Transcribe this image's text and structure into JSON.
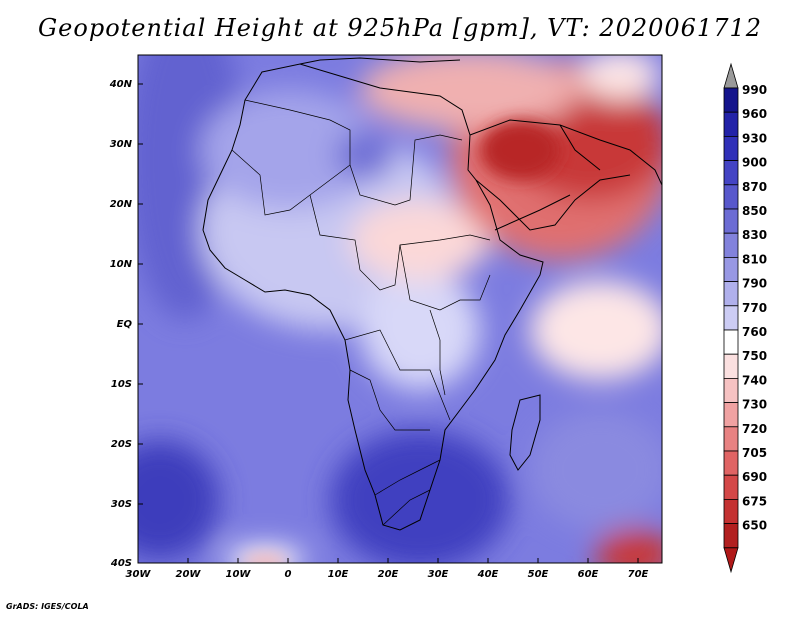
{
  "title": "Geopotential Height at 925hPa [gpm], VT: 2020061712",
  "credit": "GrADS: IGES/COLA",
  "lat_labels": [
    "40N",
    "30N",
    "20N",
    "10N",
    "EQ",
    "10S",
    "20S",
    "30S",
    "40S"
  ],
  "lon_labels": [
    "30W",
    "20W",
    "10W",
    "0",
    "10E",
    "20E",
    "30E",
    "40E",
    "50E",
    "60E",
    "70E"
  ],
  "colorbar": {
    "levels": [
      "990",
      "960",
      "930",
      "900",
      "870",
      "850",
      "830",
      "810",
      "790",
      "770",
      "760",
      "750",
      "740",
      "730",
      "720",
      "705",
      "690",
      "675",
      "650"
    ],
    "colors": [
      "#14148c",
      "#2222a8",
      "#3030b8",
      "#4444c4",
      "#5858cc",
      "#6c6cd4",
      "#8282dc",
      "#9898e4",
      "#b0b0ec",
      "#ccccf4",
      "#ffffff",
      "#fbe0e0",
      "#f6c2c2",
      "#f0a2a2",
      "#e88282",
      "#e06464",
      "#d44848",
      "#c43232",
      "#b22020"
    ],
    "top_arrow_color": "#9a9a9a",
    "bottom_arrow_color": "#b01818"
  }
}
